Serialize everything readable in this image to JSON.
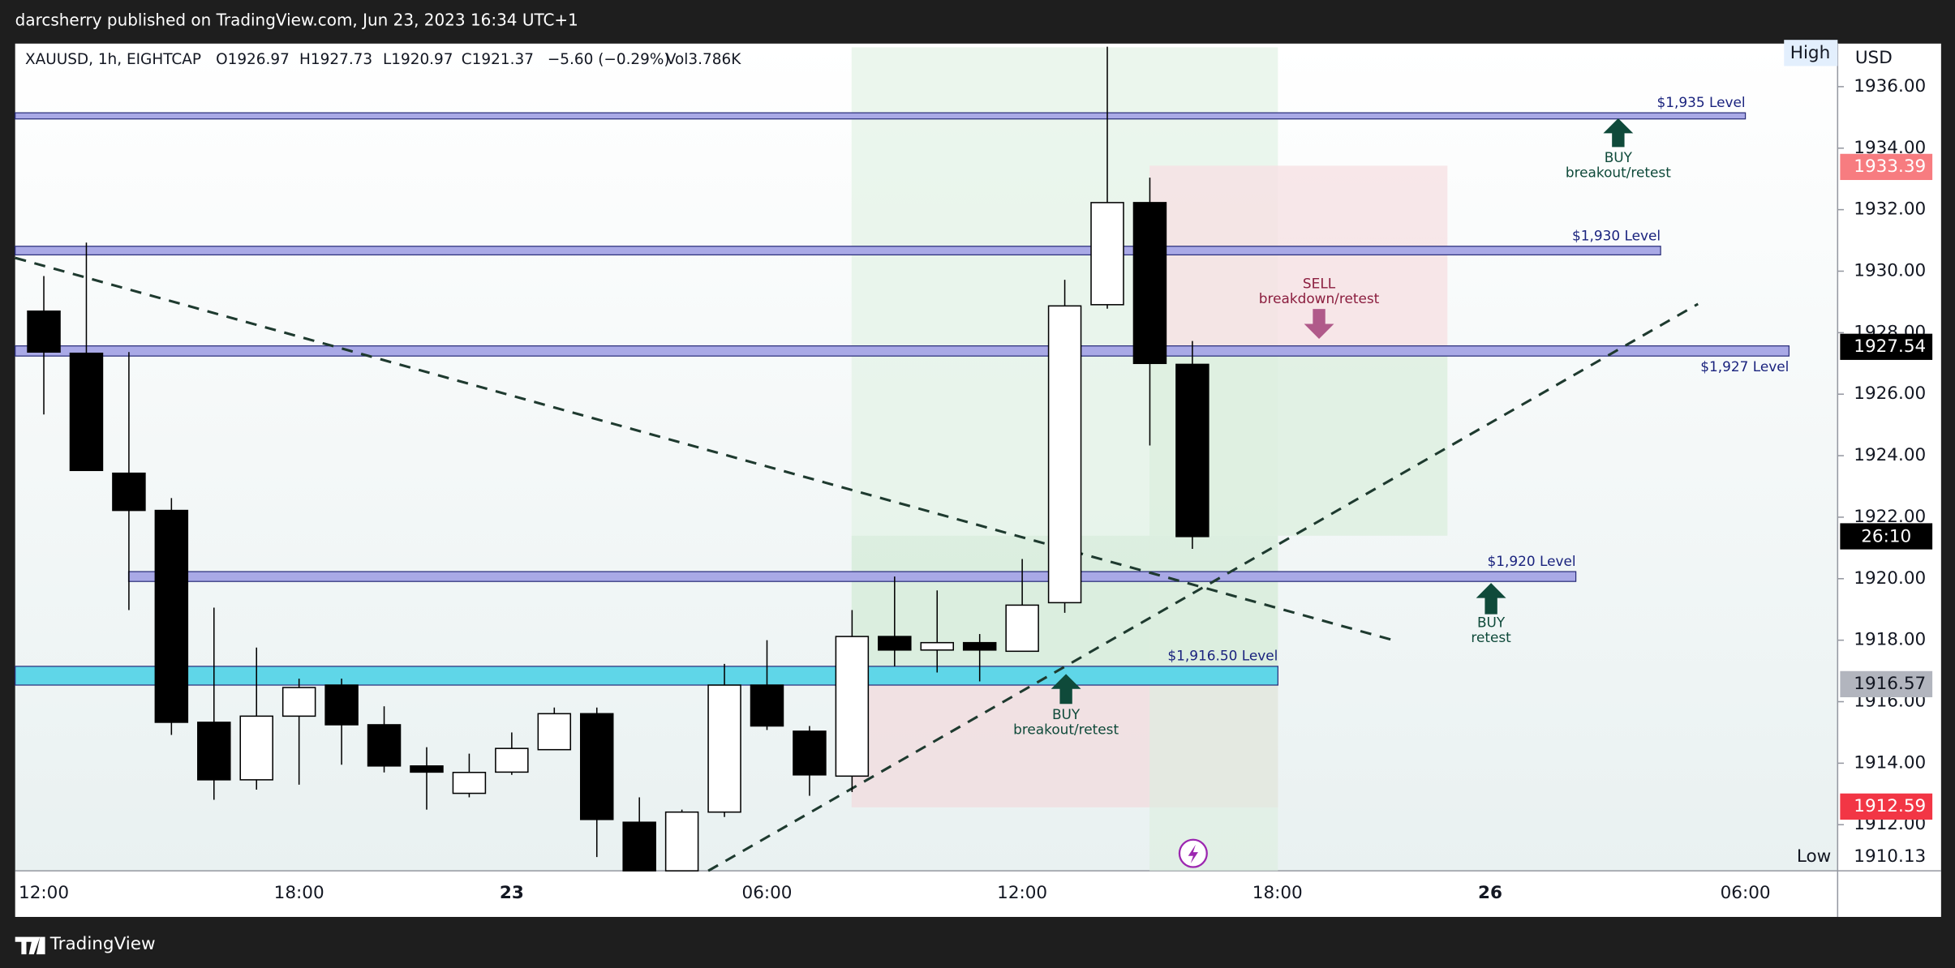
{
  "header": {
    "publisher": "darcsherry published on TradingView.com, Jun 23, 2023 16:34 UTC+1"
  },
  "footer": {
    "brand": "TradingView"
  },
  "chart_data": {
    "type": "candlestick",
    "legend": {
      "symbol": "XAUUSD, 1h, EIGHTCAP",
      "open": "O1926.97",
      "high": "H1927.73",
      "low": "L1920.97",
      "close": "C1921.37",
      "change": "−5.60 (−0.29%)",
      "volume": "Vol3.786K"
    },
    "currency": "USD",
    "categories": [
      "12:00",
      null,
      null,
      null,
      null,
      null,
      "18:00",
      null,
      null,
      null,
      null,
      "23",
      null,
      null,
      null,
      null,
      null,
      "06:00",
      null,
      null,
      null,
      null,
      null,
      "12:00",
      null,
      null,
      null,
      null,
      null,
      "18:00",
      null,
      null,
      null,
      null,
      "26",
      null,
      null,
      null,
      null,
      null,
      "06:00"
    ],
    "open": [
      1928.7,
      1927.33,
      1923.43,
      1922.22,
      1915.33,
      1913.46,
      1915.53,
      1916.54,
      1915.25,
      1913.91,
      1913.02,
      1913.71,
      1914.44,
      1915.61,
      1912.08,
      1910.5,
      1912.41,
      1916.54,
      1915.04,
      1913.58,
      1918.12,
      1917.68,
      1917.92,
      1917.64,
      1919.22,
      1928.91,
      1932.23,
      1926.97,
      null,
      null,
      null,
      null,
      null,
      null,
      null,
      null,
      null,
      null,
      null,
      null,
      null
    ],
    "high": [
      1929.84,
      1930.93,
      1927.37,
      1922.62,
      1919.06,
      1917.76,
      1916.75,
      1916.75,
      1915.85,
      1914.52,
      1914.31,
      1915.0,
      1915.81,
      1915.81,
      1912.89,
      1912.49,
      1917.23,
      1918.0,
      1915.21,
      1918.98,
      1920.07,
      1919.62,
      1918.2,
      1920.64,
      1929.72,
      1937.3,
      1933.04,
      1927.73,
      null,
      null,
      null,
      null,
      null,
      null,
      null,
      null,
      null,
      null,
      null,
      null,
      null
    ],
    "low": [
      1925.34,
      1923.5,
      1918.98,
      1914.92,
      1912.81,
      1913.14,
      1913.3,
      1913.95,
      1913.7,
      1912.49,
      1912.89,
      1913.62,
      1914.44,
      1910.95,
      1910.5,
      1910.5,
      1912.25,
      1915.08,
      1912.94,
      1913.06,
      1917.15,
      1916.95,
      1916.66,
      1917.64,
      1918.89,
      1928.78,
      1924.33,
      1920.97,
      null,
      null,
      null,
      null,
      null,
      null,
      null,
      null,
      null,
      null,
      null,
      null,
      null
    ],
    "close": [
      1927.37,
      1923.52,
      1922.22,
      1915.33,
      1913.46,
      1915.53,
      1916.46,
      1915.25,
      1913.91,
      1913.71,
      1913.7,
      1914.48,
      1915.61,
      1912.17,
      1910.5,
      1912.41,
      1916.54,
      1915.21,
      1913.62,
      1918.12,
      1917.68,
      1917.92,
      1917.68,
      1919.14,
      1928.87,
      1932.23,
      1927.0,
      1921.37,
      null,
      null,
      null,
      null,
      null,
      null,
      null,
      null,
      null,
      null,
      null,
      null,
      null
    ],
    "ylim": [
      1910.5,
      1937.4
    ],
    "yticks": [
      {
        "value": 1912,
        "label": "1912.00"
      },
      {
        "value": 1914,
        "label": "1914.00"
      },
      {
        "value": 1916,
        "label": "1916.00"
      },
      {
        "value": 1918,
        "label": "1918.00"
      },
      {
        "value": 1920,
        "label": "1920.00"
      },
      {
        "value": 1922,
        "label": "1922.00"
      },
      {
        "value": 1924,
        "label": "1924.00"
      },
      {
        "value": 1926,
        "label": "1926.00"
      },
      {
        "value": 1928,
        "label": "1928.00"
      },
      {
        "value": 1930,
        "label": "1930.00"
      },
      {
        "value": 1932,
        "label": "1932.00"
      },
      {
        "value": 1934,
        "label": "1934.00"
      },
      {
        "value": 1936,
        "label": "1936.00"
      }
    ],
    "price_tags": [
      {
        "value": 1933.39,
        "bg": "#f77c80",
        "fg": "#ffffff"
      },
      {
        "value": 1927.54,
        "bg": "#000000",
        "fg": "#ffffff"
      },
      {
        "value": 1916.57,
        "bg": "#b2b5be",
        "fg": "#131722"
      },
      {
        "value": 1912.59,
        "bg": "#f23645",
        "fg": "#ffffff"
      }
    ],
    "countdown": "26:10",
    "high_label": "High",
    "low_tag": {
      "label": "Low",
      "value": 1910.13
    },
    "levels": [
      {
        "label": "$1,935 Level",
        "top": 1935.15,
        "bottom": 1934.95,
        "color": "#a9a9e6"
      },
      {
        "label": "$1,930 Level",
        "top": 1930.81,
        "bottom": 1930.53,
        "color": "#a9a9e6"
      },
      {
        "label": "$1,927 Level",
        "top": 1927.57,
        "bottom": 1927.24,
        "color": "#a9a9e6"
      },
      {
        "label": "$1,920 Level",
        "top": 1920.23,
        "bottom": 1919.91,
        "color": "#a9a9e6"
      },
      {
        "label": "$1,916.50 Level",
        "top": 1917.15,
        "bottom": 1916.54,
        "color": "#5fd6e8"
      }
    ],
    "annotations": [
      {
        "title": "BUY",
        "text": "breakout/retest"
      },
      {
        "title": "SELL",
        "text": "breakdown/retest"
      },
      {
        "title": "BUY",
        "text": "retest"
      },
      {
        "title": "BUY",
        "text": "breakout/retest"
      }
    ]
  }
}
